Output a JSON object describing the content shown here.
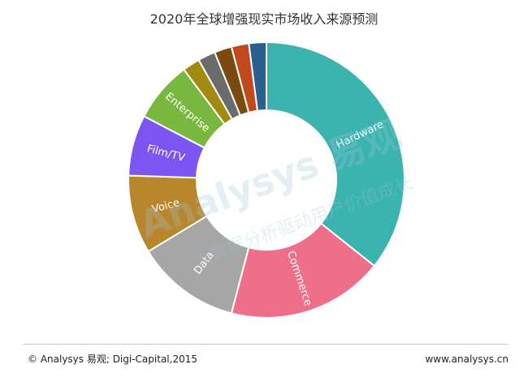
{
  "chart_data": {
    "type": "pie",
    "title": "2020年全球增强现实市场收入来源预测",
    "categories": [
      "Hardware",
      "Commerce",
      "Data",
      "Voice",
      "Film/TV",
      "Enterprise",
      "",
      "",
      "",
      "",
      ""
    ],
    "values": [
      35,
      18,
      12,
      9,
      7,
      7,
      2,
      2,
      2,
      2,
      2
    ],
    "colors": [
      "#3bb3af",
      "#ef6f8a",
      "#a6a6a6",
      "#b8862c",
      "#7d55f2",
      "#79b83e",
      "#a28a10",
      "#6b6b6b",
      "#7a4a0f",
      "#c14a1c",
      "#2a5f90"
    ],
    "donut": true,
    "legend": "none"
  },
  "watermark": {
    "brand": "Analysys 易观",
    "slogan": "大数据分析驱动用户价值成长"
  },
  "footer": {
    "source": "© Analysys 易观; Digi-Capital,2015",
    "url": "www.analysys.cn"
  }
}
